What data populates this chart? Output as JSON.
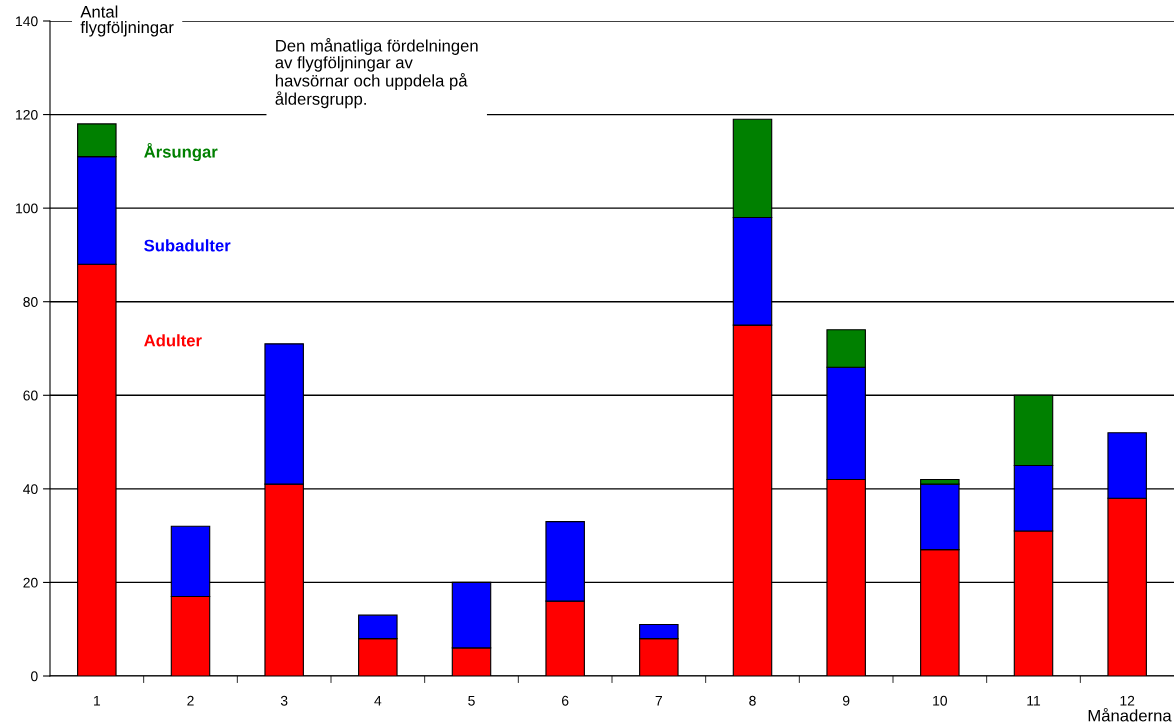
{
  "chart_data": {
    "type": "bar",
    "stacked": true,
    "title": "Den månatliga fördelningen\nav flygföljningar av\nhavsörnar och uppdela på\nåldersgrupp.",
    "ylabel": "Antal\nflygföljningar",
    "xlabel": "Månaderna",
    "categories": [
      "1",
      "2",
      "3",
      "4",
      "5",
      "6",
      "7",
      "8",
      "9",
      "10",
      "11",
      "12"
    ],
    "series": [
      {
        "name": "Adulter",
        "color": "#ff0000",
        "values": [
          88,
          17,
          41,
          8,
          6,
          16,
          8,
          75,
          42,
          27,
          31,
          38
        ]
      },
      {
        "name": "Subadulter",
        "color": "#0000ff",
        "values": [
          23,
          15,
          30,
          5,
          14,
          17,
          3,
          23,
          24,
          14,
          14,
          14
        ]
      },
      {
        "name": "Årsungar",
        "color": "#008000",
        "values": [
          7,
          null,
          null,
          null,
          null,
          null,
          null,
          21,
          8,
          1,
          15,
          null
        ]
      }
    ],
    "ylim": [
      0,
      140
    ],
    "yticks": [
      0,
      20,
      40,
      60,
      80,
      100,
      120,
      140
    ],
    "grid": "y"
  }
}
